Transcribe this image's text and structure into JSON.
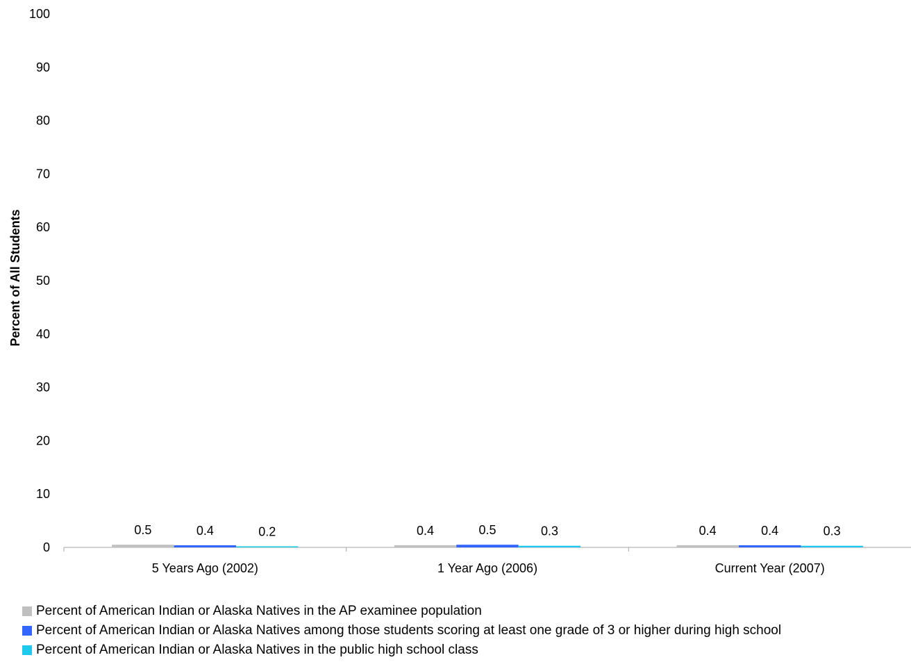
{
  "chart_data": {
    "type": "bar",
    "title": "",
    "xlabel": "",
    "ylabel": "Percent of All Students",
    "ylim": [
      0,
      100
    ],
    "yticks": [
      "0",
      "10",
      "20",
      "30",
      "40",
      "50",
      "60",
      "70",
      "80",
      "90",
      "100"
    ],
    "categories": [
      "5 Years Ago (2002)",
      "1 Year Ago (2006)",
      "Current Year (2007)"
    ],
    "grid": false,
    "legend_position": "bottom",
    "series": [
      {
        "name": "Percent of American Indian or Alaska Natives in the AP examinee population",
        "color": "#c0c0c0",
        "values": [
          0.5,
          0.4,
          0.4
        ],
        "labels": [
          "0.5",
          "0.4",
          "0.4"
        ]
      },
      {
        "name": "Percent of American Indian or Alaska Natives among those students scoring at least one grade of 3 or higher during high school",
        "color": "#3366ff",
        "values": [
          0.4,
          0.5,
          0.4
        ],
        "labels": [
          "0.4",
          "0.5",
          "0.4"
        ]
      },
      {
        "name": "Percent of American Indian or Alaska Natives in the public high school class",
        "color": "#1ec8ee",
        "values": [
          0.2,
          0.3,
          0.3
        ],
        "labels": [
          "0.2",
          "0.3",
          "0.3"
        ]
      }
    ]
  }
}
